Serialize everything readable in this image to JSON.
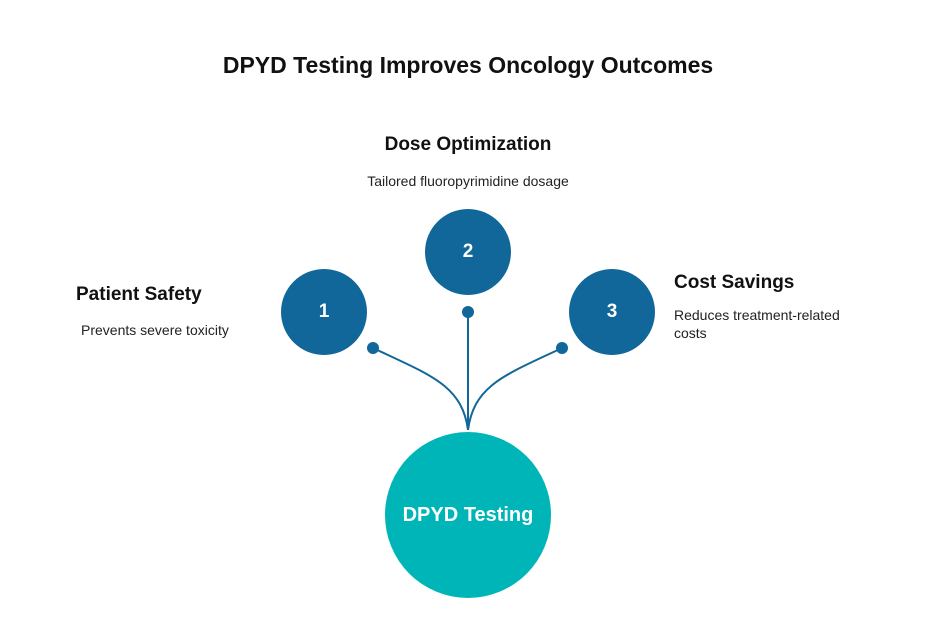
{
  "title": "DPYD Testing Improves Oncology Outcomes",
  "hub": {
    "label": "DPYD Testing",
    "color": "#00b5b8"
  },
  "node_color": "#12679a",
  "connector_color": "#12679a",
  "nodes": [
    {
      "number": "1",
      "label": "Patient Safety",
      "description": "Prevents severe toxicity"
    },
    {
      "number": "2",
      "label": "Dose Optimization",
      "description": "Tailored fluoropyrimidine dosage"
    },
    {
      "number": "3",
      "label": "Cost Savings",
      "description": "Reduces treatment-related costs"
    }
  ]
}
